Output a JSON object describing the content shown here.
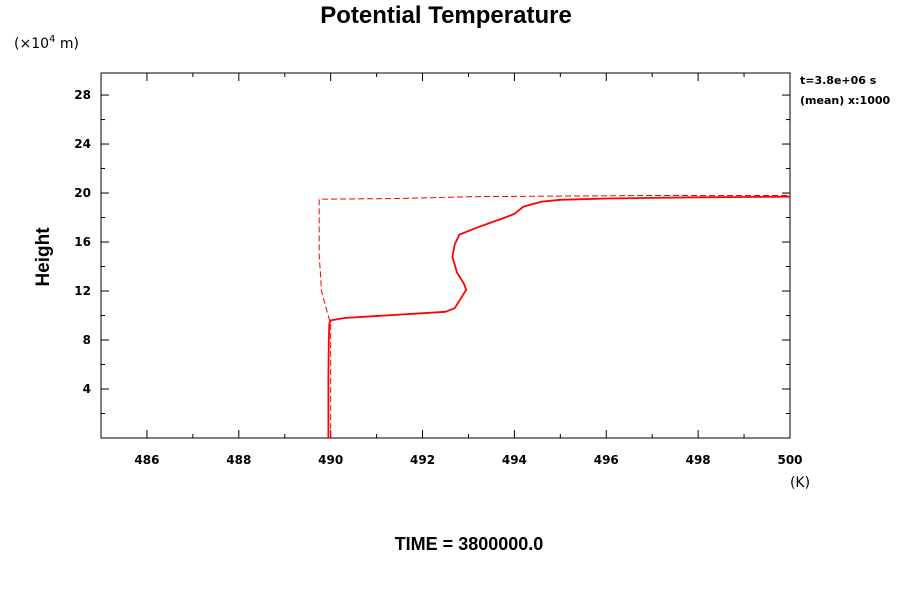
{
  "chart_data": {
    "type": "line",
    "title": "Potential Temperature",
    "ylabel": "Height",
    "y_unit": "(×10",
    "y_unit_exp": "4",
    "y_unit_tail": " m)",
    "x_unit": "(K)",
    "annotation_line1": "t=3.8e+06 s",
    "annotation_line2": "(mean) x:1000",
    "footer": "TIME = 3800000.0",
    "xlim": [
      485,
      500
    ],
    "ylim": [
      0,
      29.8
    ],
    "xticks": [
      486,
      488,
      490,
      492,
      494,
      496,
      498,
      500
    ],
    "xtick_labels": [
      "486",
      "488",
      "490",
      "492",
      "494",
      "496",
      "498",
      "500"
    ],
    "yticks": [
      4,
      8,
      12,
      16,
      20,
      24,
      28
    ],
    "ytick_labels": [
      "4",
      "8",
      "12",
      "16",
      "20",
      "24",
      "28"
    ],
    "line_color": "#ff0000",
    "series": [
      {
        "style": "solid",
        "x": [
          489.95,
          489.95,
          489.96,
          489.97,
          490.0,
          490.3,
          492.5,
          492.7,
          492.8,
          492.95,
          492.9,
          492.75,
          492.65,
          492.7,
          492.8,
          493.2,
          493.8,
          494.0,
          494.1,
          494.2,
          494.6,
          495.0,
          496.0,
          497.0,
          498.0,
          499.0,
          500.0
        ],
        "y": [
          0.0,
          5.0,
          8.0,
          9.3,
          9.6,
          9.8,
          10.3,
          10.6,
          11.2,
          12.1,
          12.6,
          13.5,
          14.8,
          15.8,
          16.6,
          17.2,
          18.0,
          18.3,
          18.6,
          18.9,
          19.3,
          19.45,
          19.55,
          19.6,
          19.65,
          19.68,
          19.7
        ]
      },
      {
        "style": "dashed",
        "x": [
          490.0,
          490.0,
          489.9,
          489.8,
          489.75,
          489.75,
          491.5,
          493.0,
          495.0,
          497.0,
          498.5,
          500.0
        ],
        "y": [
          0.0,
          9.3,
          10.6,
          12.0,
          15.0,
          19.5,
          19.55,
          19.7,
          19.75,
          19.8,
          19.8,
          19.8
        ]
      }
    ]
  }
}
